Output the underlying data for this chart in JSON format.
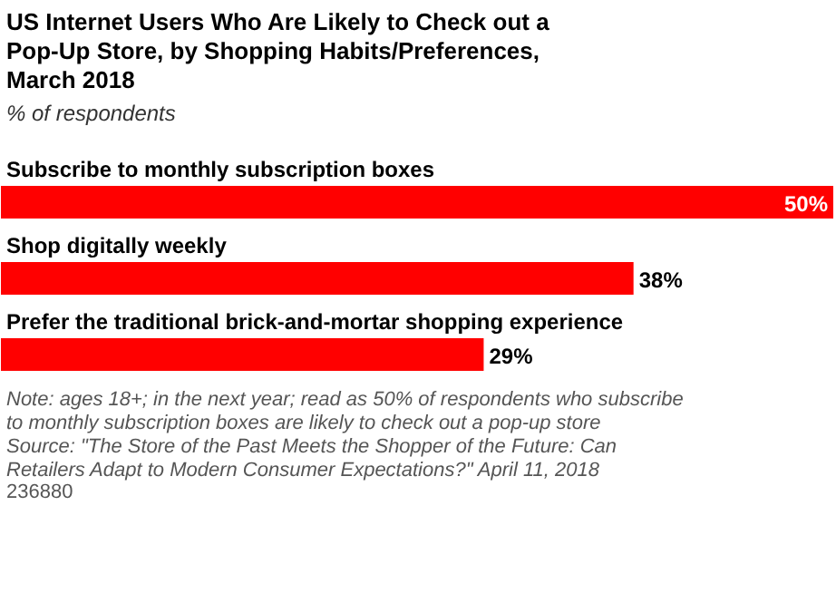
{
  "chart_data": {
    "type": "bar",
    "orientation": "horizontal",
    "title": "US Internet Users Who Are Likely to Check out a Pop-Up Store, by Shopping Habits/Preferences, March 2018",
    "subtitle": "% of respondents",
    "categories": [
      "Subscribe to monthly subscription boxes",
      "Shop digitally weekly",
      "Prefer the traditional brick-and-mortar shopping experience"
    ],
    "values": [
      50,
      38,
      29
    ],
    "value_labels": [
      "50%",
      "38%",
      "29%"
    ],
    "color": "#ff0000",
    "grid": false,
    "annotations": [
      "Note: ages 18+; in the next year; read as 50% of respondents who subscribe to monthly subscription boxes are likely to check out a pop-up store",
      "Source: \"The Store of the Past Meets the Shopper of the Future: Can Retailers Adapt to Modern Consumer Expectations?\" April 11, 2018",
      "236880"
    ]
  }
}
